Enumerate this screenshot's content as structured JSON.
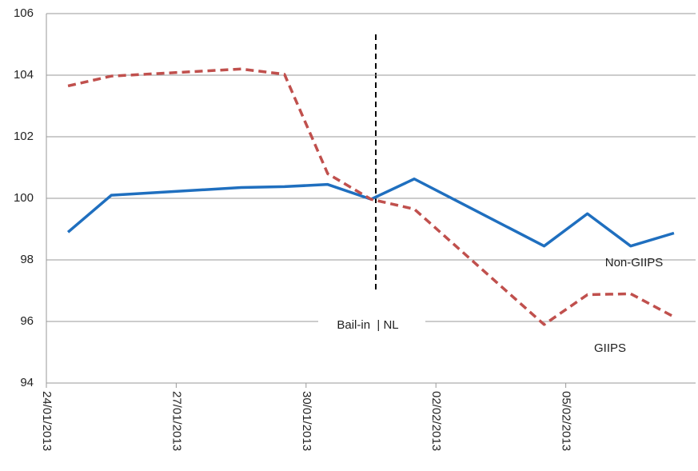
{
  "chart_data": {
    "type": "line",
    "annotation": "Bail-in  | NL",
    "x": [
      0.5,
      1.5,
      4.5,
      5.5,
      6.5,
      7.5,
      8.5,
      11.5,
      12.5,
      13.5,
      14.5
    ],
    "xlim": [
      0,
      15
    ],
    "xticks": [
      {
        "value": 0,
        "label": "24/01/2013"
      },
      {
        "value": 3,
        "label": "27/01/2013"
      },
      {
        "value": 6,
        "label": "30/01/2013"
      },
      {
        "value": 9,
        "label": "02/02/2013"
      },
      {
        "value": 12,
        "label": "05/02/2013"
      }
    ],
    "ylim": [
      94,
      106
    ],
    "yticks": [
      94,
      96,
      98,
      100,
      102,
      104,
      106
    ],
    "grid": true,
    "series": [
      {
        "name": "Non-GIIPS",
        "color": "#1f6fbf",
        "dash": false,
        "values": [
          98.9,
          100.1,
          100.35,
          100.38,
          100.45,
          99.97,
          100.63,
          98.45,
          99.5,
          98.45,
          98.87
        ]
      },
      {
        "name": "GIIPS",
        "color": "#c0504d",
        "dash": true,
        "values": [
          103.65,
          103.97,
          104.2,
          104.03,
          100.8,
          99.97,
          99.65,
          95.9,
          96.87,
          96.9,
          96.15
        ]
      }
    ]
  }
}
